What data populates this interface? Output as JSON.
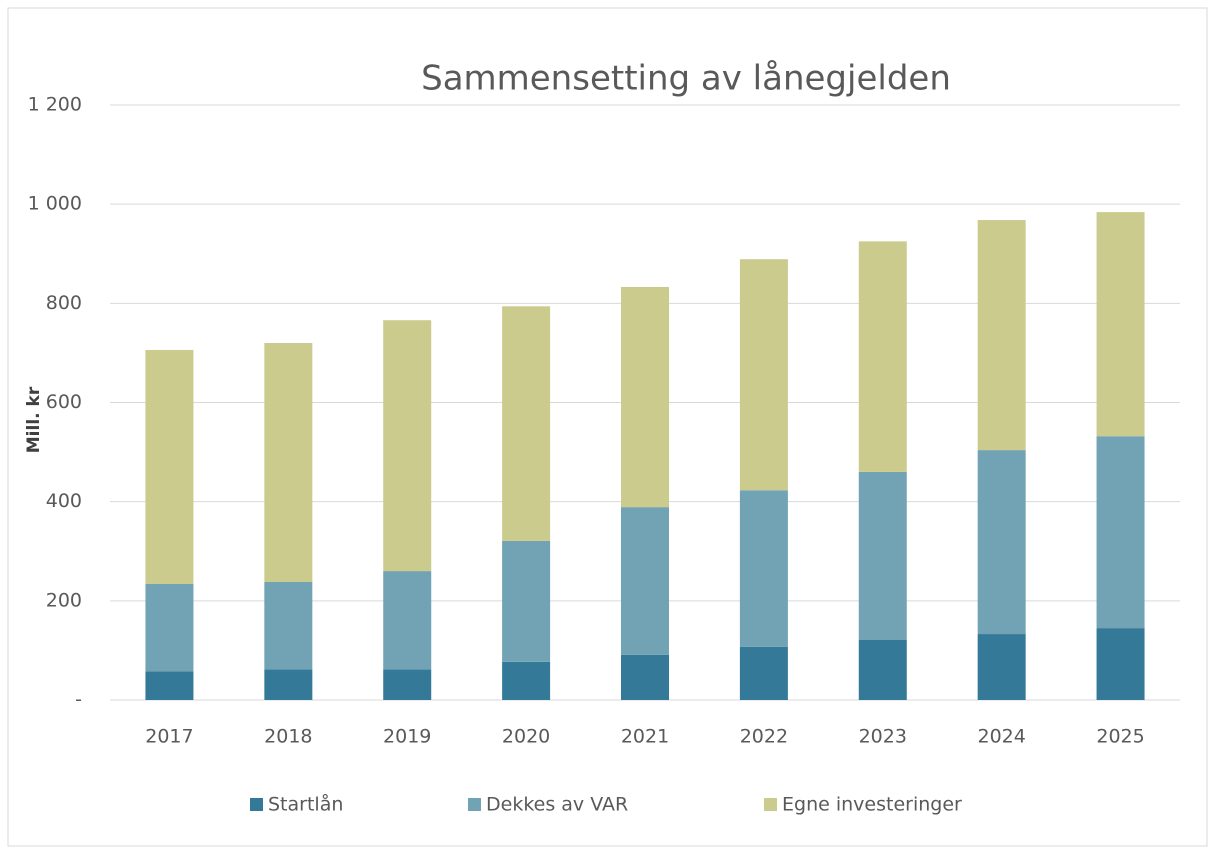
{
  "chart_data": {
    "type": "stacked_bar",
    "title": "Sammensetting av lånegjelden",
    "y_label": "Mill. kr",
    "categories": [
      "2017",
      "2018",
      "2019",
      "2020",
      "2021",
      "2022",
      "2023",
      "2024",
      "2025"
    ],
    "series": [
      {
        "name": "Startlån",
        "color": "#347a98",
        "values": [
          58,
          62,
          62,
          77,
          91,
          107,
          121,
          133,
          145
        ]
      },
      {
        "name": "Dekkes av VAR",
        "color": "#71a3b5",
        "values": [
          176,
          176,
          198,
          244,
          298,
          316,
          339,
          371,
          387
        ]
      },
      {
        "name": "Egne investeringer",
        "color": "#cccb8e",
        "values": [
          472,
          482,
          506,
          473,
          444,
          466,
          465,
          464,
          452
        ]
      }
    ],
    "ylim": [
      0,
      1200
    ],
    "yticks": [
      {
        "value": 0,
        "label": "-"
      },
      200,
      400,
      600,
      800,
      {
        "value": 1000,
        "label": "1 000"
      },
      {
        "value": 1200,
        "label": "1 200"
      }
    ],
    "grid": true,
    "legend": "bottom"
  }
}
